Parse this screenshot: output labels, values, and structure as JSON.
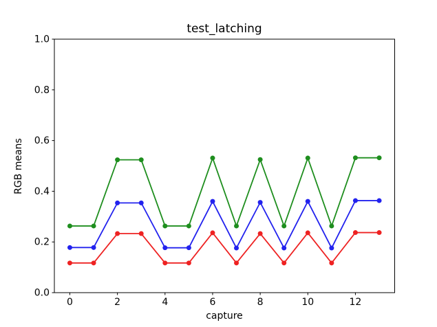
{
  "figure": {
    "background": "#ffffff",
    "axis_color": "#000000",
    "text_color": "#000000"
  },
  "chart_data": {
    "type": "line",
    "title": "test_latching",
    "xlabel": "capture",
    "ylabel": "RGB means",
    "x": [
      0,
      1,
      2,
      3,
      4,
      5,
      6,
      7,
      8,
      9,
      10,
      11,
      12,
      13
    ],
    "series": [
      {
        "name": "red",
        "color": "#ee2222",
        "marker": "circle",
        "values": [
          0.117,
          0.117,
          0.233,
          0.233,
          0.117,
          0.117,
          0.236,
          0.117,
          0.233,
          0.117,
          0.236,
          0.117,
          0.237,
          0.237
        ]
      },
      {
        "name": "green",
        "color": "#1e8e1e",
        "marker": "circle",
        "values": [
          0.263,
          0.263,
          0.524,
          0.524,
          0.263,
          0.263,
          0.531,
          0.263,
          0.525,
          0.263,
          0.531,
          0.263,
          0.532,
          0.532
        ]
      },
      {
        "name": "blue",
        "color": "#2222ee",
        "marker": "circle",
        "values": [
          0.178,
          0.178,
          0.354,
          0.354,
          0.177,
          0.177,
          0.36,
          0.176,
          0.356,
          0.176,
          0.36,
          0.176,
          0.363,
          0.363
        ]
      }
    ],
    "xlim": [
      -0.65,
      13.65
    ],
    "ylim": [
      0,
      1
    ],
    "xtick_values": [
      0,
      2,
      4,
      6,
      8,
      10,
      12
    ],
    "xtick_labels": [
      "0",
      "2",
      "4",
      "6",
      "8",
      "10",
      "12"
    ],
    "ytick_values": [
      0,
      0.2,
      0.4,
      0.6,
      0.8,
      1
    ],
    "ytick_labels": [
      "0.0",
      "0.2",
      "0.4",
      "0.6",
      "0.8",
      "1.0"
    ],
    "grid": false,
    "legend": "none"
  }
}
